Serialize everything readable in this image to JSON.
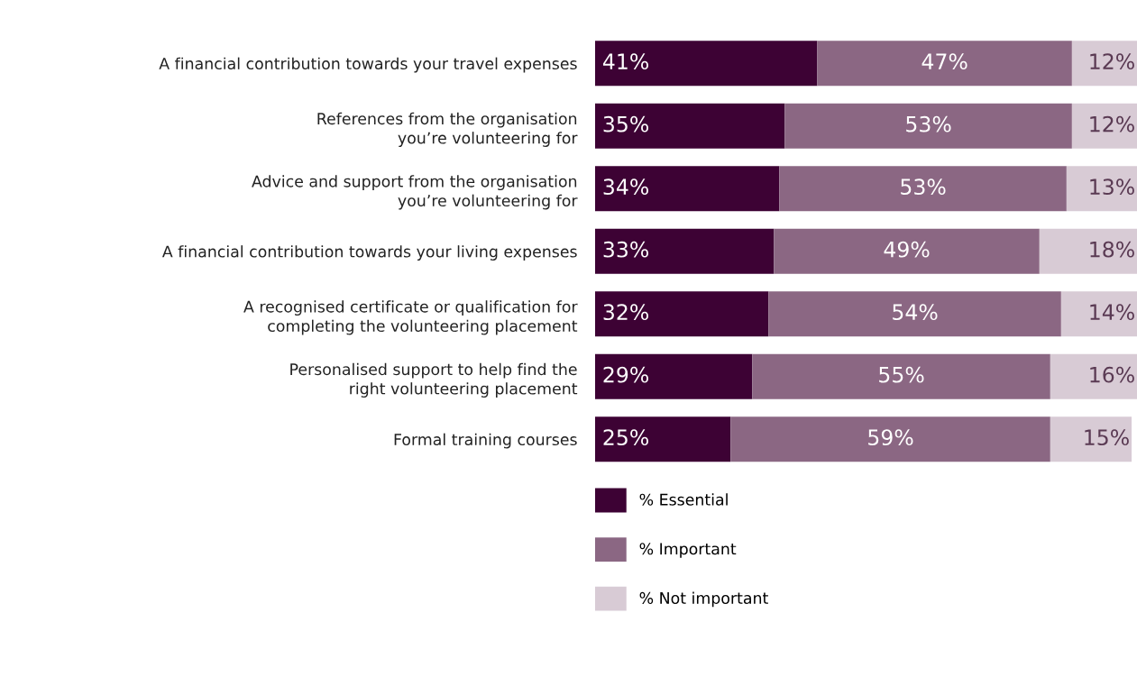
{
  "chart_data": {
    "type": "bar",
    "orientation": "horizontal",
    "stacked": true,
    "legend": "bottom",
    "grid": false,
    "tick_labels": "y",
    "categories": [
      "A financial contribution towards your travel expenses",
      "References from the organisation\nyou’re volunteering for",
      "Advice and support from the organisation\nyou’re volunteering for",
      "A financial contribution towards your living expenses",
      "A recognised certificate or qualification for\ncompleting the volunteering placement",
      "Personalised support to help find the\nright volunteering placement",
      "Formal training courses"
    ],
    "series": [
      {
        "name": "% Essential",
        "color": "#3d0234",
        "values": [
          41,
          35,
          34,
          33,
          32,
          29,
          25
        ],
        "value_labels": [
          "41%",
          "35%",
          "34%",
          "33%",
          "32%",
          "29%",
          "25%"
        ]
      },
      {
        "name": "% Important",
        "color": "#8b6783",
        "values": [
          47,
          53,
          53,
          49,
          54,
          55,
          59
        ],
        "value_labels": [
          "47%",
          "53%",
          "53%",
          "49%",
          "54%",
          "55%",
          "59%"
        ]
      },
      {
        "name": "% Not important",
        "color": "#d8cbd5",
        "values": [
          12,
          12,
          13,
          18,
          14,
          16,
          15
        ],
        "value_labels": [
          "12%",
          "12%",
          "13%",
          "18%",
          "14%",
          "16%",
          "15%"
        ]
      }
    ]
  }
}
